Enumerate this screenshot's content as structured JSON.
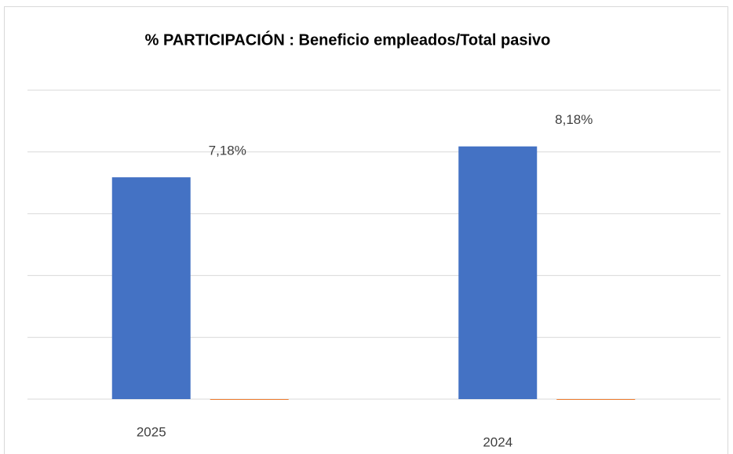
{
  "chart_data": {
    "type": "bar",
    "title": "% PARTICIPACIÓN : Beneficio empleados/Total pasivo",
    "categories": [
      "2025",
      "2024"
    ],
    "series": [
      {
        "color": "#4472c4",
        "values": [
          7.18,
          8.18
        ],
        "value_labels": [
          "7,18%",
          "8,18%"
        ]
      },
      {
        "color": "#ed7d31",
        "values": [
          0,
          0
        ]
      }
    ],
    "ylim": [
      0,
      10
    ],
    "yticks": [
      0,
      2,
      4,
      6,
      8,
      10
    ],
    "grid": true
  }
}
